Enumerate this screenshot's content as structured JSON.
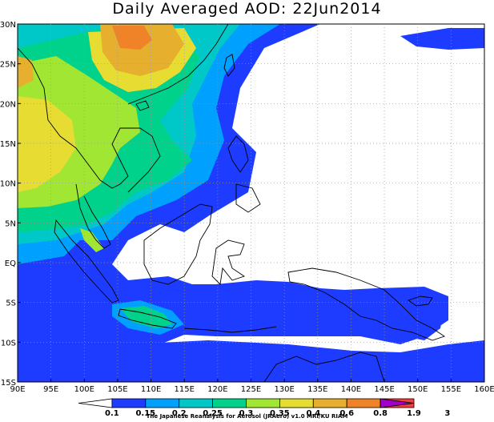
{
  "title": "Daily Averaged AOD: 22Jun2014",
  "credit": "The Japanese Reanalysis for Aerosol (JRAero) v1.0 MRI/KU RIAM",
  "map": {
    "lon_range": [
      90,
      160
    ],
    "lat_range": [
      -15,
      30
    ],
    "lon_ticks": [
      {
        "value": 90,
        "label": "90E"
      },
      {
        "value": 95,
        "label": "95E"
      },
      {
        "value": 100,
        "label": "100E"
      },
      {
        "value": 105,
        "label": "105E"
      },
      {
        "value": 110,
        "label": "110E"
      },
      {
        "value": 115,
        "label": "115E"
      },
      {
        "value": 120,
        "label": "120E"
      },
      {
        "value": 125,
        "label": "125E"
      },
      {
        "value": 130,
        "label": "130E"
      },
      {
        "value": 135,
        "label": "135E"
      },
      {
        "value": 140,
        "label": "140E"
      },
      {
        "value": 145,
        "label": "145E"
      },
      {
        "value": 150,
        "label": "150E"
      },
      {
        "value": 155,
        "label": "155E"
      },
      {
        "value": 160,
        "label": "160E"
      }
    ],
    "lat_ticks": [
      {
        "value": 30,
        "label": "30N"
      },
      {
        "value": 25,
        "label": "25N"
      },
      {
        "value": 20,
        "label": "20N"
      },
      {
        "value": 15,
        "label": "15N"
      },
      {
        "value": 10,
        "label": "10N"
      },
      {
        "value": 5,
        "label": "5N"
      },
      {
        "value": 0,
        "label": "EQ"
      },
      {
        "value": -5,
        "label": "5S"
      },
      {
        "value": -10,
        "label": "10S"
      },
      {
        "value": -15,
        "label": "15S"
      }
    ]
  },
  "colorbar": {
    "levels": [
      "0.1",
      "0.15",
      "0.2",
      "0.25",
      "0.3",
      "0.35",
      "0.4",
      "0.6",
      "0.8",
      "1.9",
      "3"
    ],
    "colors": [
      "#ffffff",
      "#1e3cff",
      "#00a0ff",
      "#00c8c8",
      "#00d28c",
      "#a0e632",
      "#e6dc32",
      "#e6af2d",
      "#f08228",
      "#fa3c3c",
      "#a000c8"
    ]
  }
}
